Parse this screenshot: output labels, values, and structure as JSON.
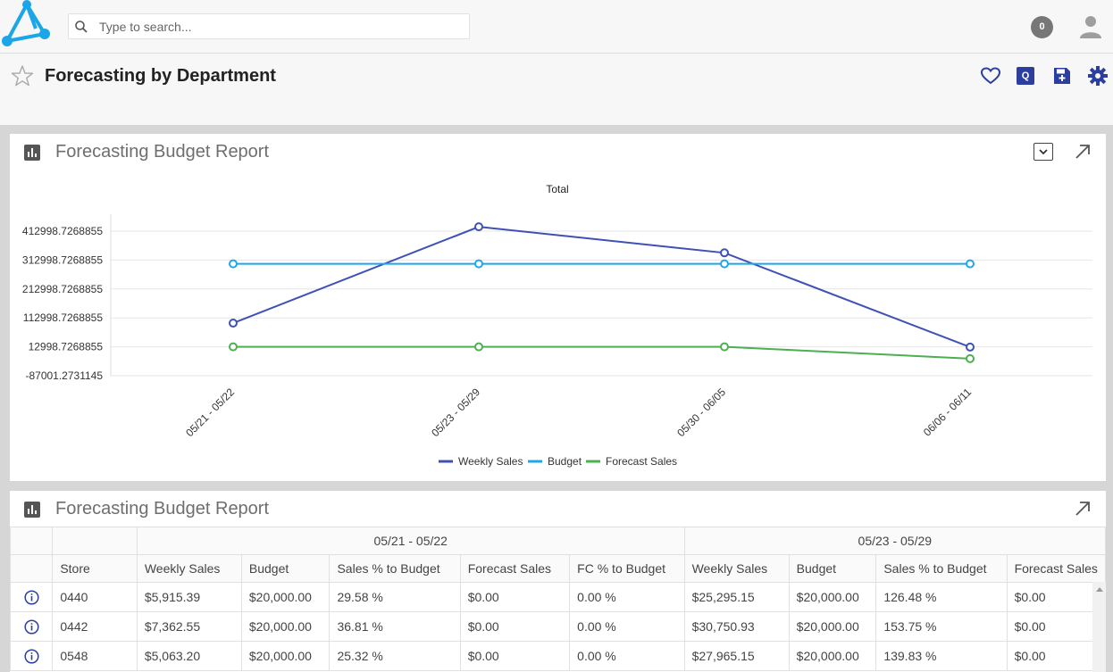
{
  "header": {
    "search_placeholder": "Type to search...",
    "notification_count": "0"
  },
  "page": {
    "title": "Forecasting by Department"
  },
  "colors": {
    "accent": "#2c3e9e",
    "logo": "#1ba6e8",
    "weekly_sales": "#3f51b5",
    "budget": "#1ea7e8",
    "forecast_sales": "#4caf50"
  },
  "panel1": {
    "title": "Forecasting Budget Report"
  },
  "chart_data": {
    "type": "line",
    "title": "Total",
    "categories": [
      "05/21 - 05/22",
      "05/23 - 05/29",
      "05/30 - 06/05",
      "06/06 - 06/11"
    ],
    "y_ticks": [
      "412998.7268855",
      "312998.7268855",
      "212998.7268855",
      "112998.7268855",
      "12998.7268855",
      "-87001.2731145"
    ],
    "ylim": [
      -87001.2731145,
      412998.7268855
    ],
    "series": [
      {
        "name": "Weekly Sales",
        "color": "#3f51b5",
        "values": [
          95000,
          428000,
          338000,
          12000
        ]
      },
      {
        "name": "Budget",
        "color": "#1ea7e8",
        "values": [
          300000,
          300000,
          300000,
          300000
        ]
      },
      {
        "name": "Forecast Sales",
        "color": "#4caf50",
        "values": [
          12998,
          12998,
          12998,
          -28000
        ]
      }
    ],
    "legend_position": "bottom"
  },
  "panel2": {
    "title": "Forecasting Budget Report",
    "groups": [
      "05/21 - 05/22",
      "05/23 - 05/29"
    ],
    "columns": [
      "Store",
      "Weekly Sales",
      "Budget",
      "Sales % to Budget",
      "Forecast Sales",
      "FC % to Budget",
      "Weekly Sales",
      "Budget",
      "Sales % to Budget",
      "Forecast Sales"
    ],
    "rows": [
      [
        "0440",
        "$5,915.39",
        "$20,000.00",
        "29.58 %",
        "$0.00",
        "0.00 %",
        "$25,295.15",
        "$20,000.00",
        "126.48 %",
        "$0.00"
      ],
      [
        "0442",
        "$7,362.55",
        "$20,000.00",
        "36.81 %",
        "$0.00",
        "0.00 %",
        "$30,750.93",
        "$20,000.00",
        "153.75 %",
        "$0.00"
      ],
      [
        "0548",
        "$5,063.20",
        "$20,000.00",
        "25.32 %",
        "$0.00",
        "0.00 %",
        "$27,965.15",
        "$20,000.00",
        "139.83 %",
        "$0.00"
      ]
    ]
  }
}
